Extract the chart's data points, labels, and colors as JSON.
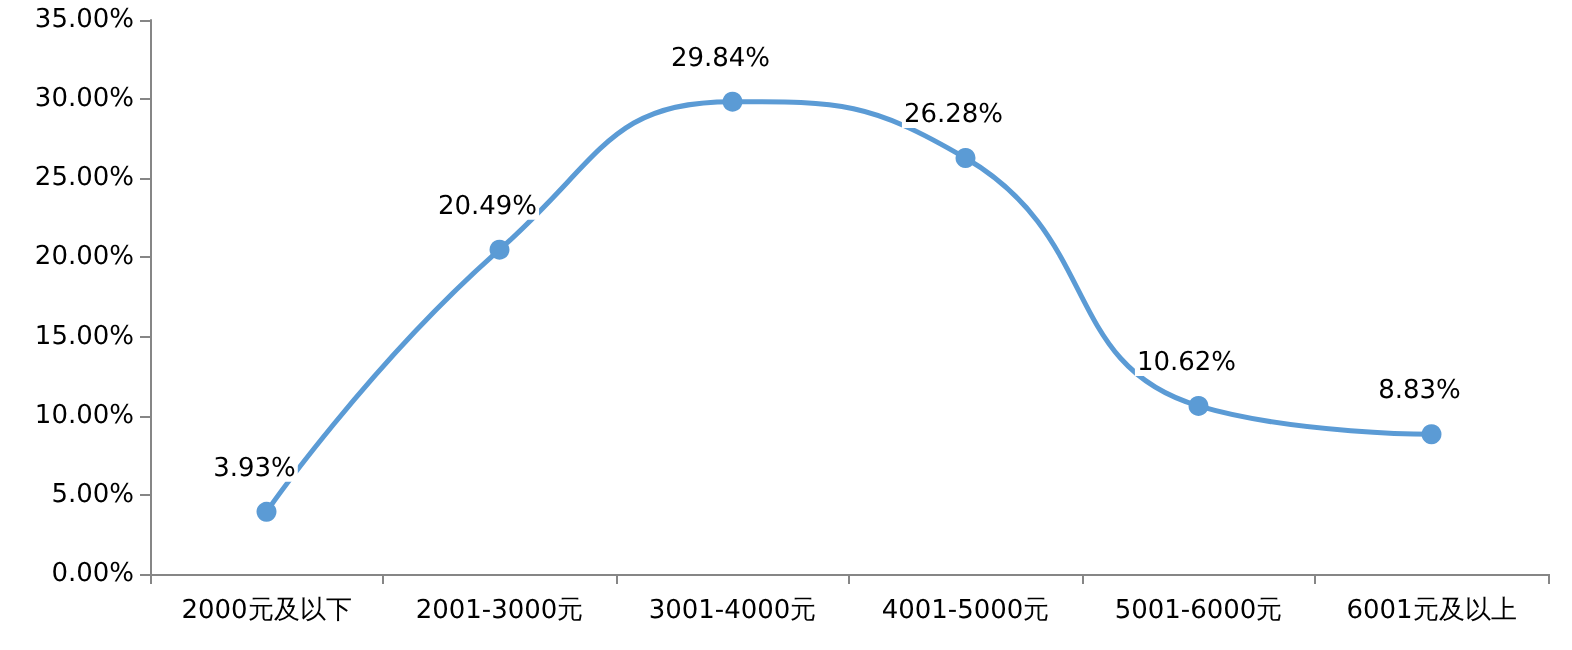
{
  "chart_data": {
    "type": "line",
    "categories": [
      "2000元及以下",
      "2001-3000元",
      "3001-4000元",
      "4001-5000元",
      "5001-6000元",
      "6001元及以上"
    ],
    "series": [
      {
        "color": "#5b9bd5",
        "values": [
          3.93,
          20.49,
          29.84,
          26.28,
          10.62,
          8.83
        ],
        "value_labels": [
          "3.93%",
          "20.49%",
          "29.84%",
          "26.28%",
          "10.62%",
          "8.83%"
        ]
      }
    ],
    "ylim": [
      0,
      35
    ],
    "yticks": [
      {
        "value": 0,
        "label": "0.00%"
      },
      {
        "value": 5,
        "label": "5.00%"
      },
      {
        "value": 10,
        "label": "10.00%"
      },
      {
        "value": 15,
        "label": "15.00%"
      },
      {
        "value": 20,
        "label": "20.00%"
      },
      {
        "value": 25,
        "label": "25.00%"
      },
      {
        "value": 30,
        "label": "30.00%"
      },
      {
        "value": 35,
        "label": "35.00%"
      }
    ],
    "grid": false,
    "marker": "circle",
    "line_style": "solid"
  }
}
